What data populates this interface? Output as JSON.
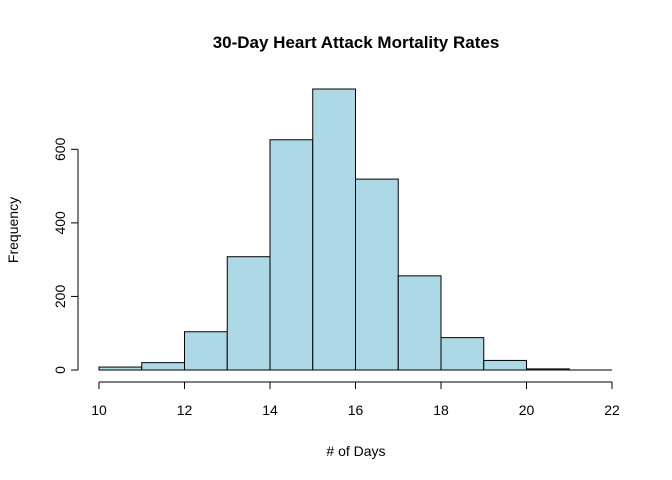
{
  "chart_data": {
    "type": "bar",
    "title": "30-Day Heart Attack Mortality Rates",
    "xlabel": "# of Days",
    "ylabel": "Frequency",
    "bins": [
      {
        "start": 10,
        "end": 11,
        "value": 8
      },
      {
        "start": 11,
        "end": 12,
        "value": 20
      },
      {
        "start": 12,
        "end": 13,
        "value": 104
      },
      {
        "start": 13,
        "end": 14,
        "value": 308
      },
      {
        "start": 14,
        "end": 15,
        "value": 626
      },
      {
        "start": 15,
        "end": 16,
        "value": 764
      },
      {
        "start": 16,
        "end": 17,
        "value": 519
      },
      {
        "start": 17,
        "end": 18,
        "value": 256
      },
      {
        "start": 18,
        "end": 19,
        "value": 88
      },
      {
        "start": 19,
        "end": 20,
        "value": 26
      },
      {
        "start": 20,
        "end": 21,
        "value": 3
      },
      {
        "start": 21,
        "end": 22,
        "value": 0
      }
    ],
    "xlim": [
      10,
      22
    ],
    "ylim": [
      0,
      764
    ],
    "x_ticks": [
      10,
      12,
      14,
      16,
      18,
      20,
      22
    ],
    "y_ticks": [
      0,
      200,
      400,
      600
    ],
    "bar_color": "#add8e6",
    "grid": false,
    "legend": "none"
  }
}
